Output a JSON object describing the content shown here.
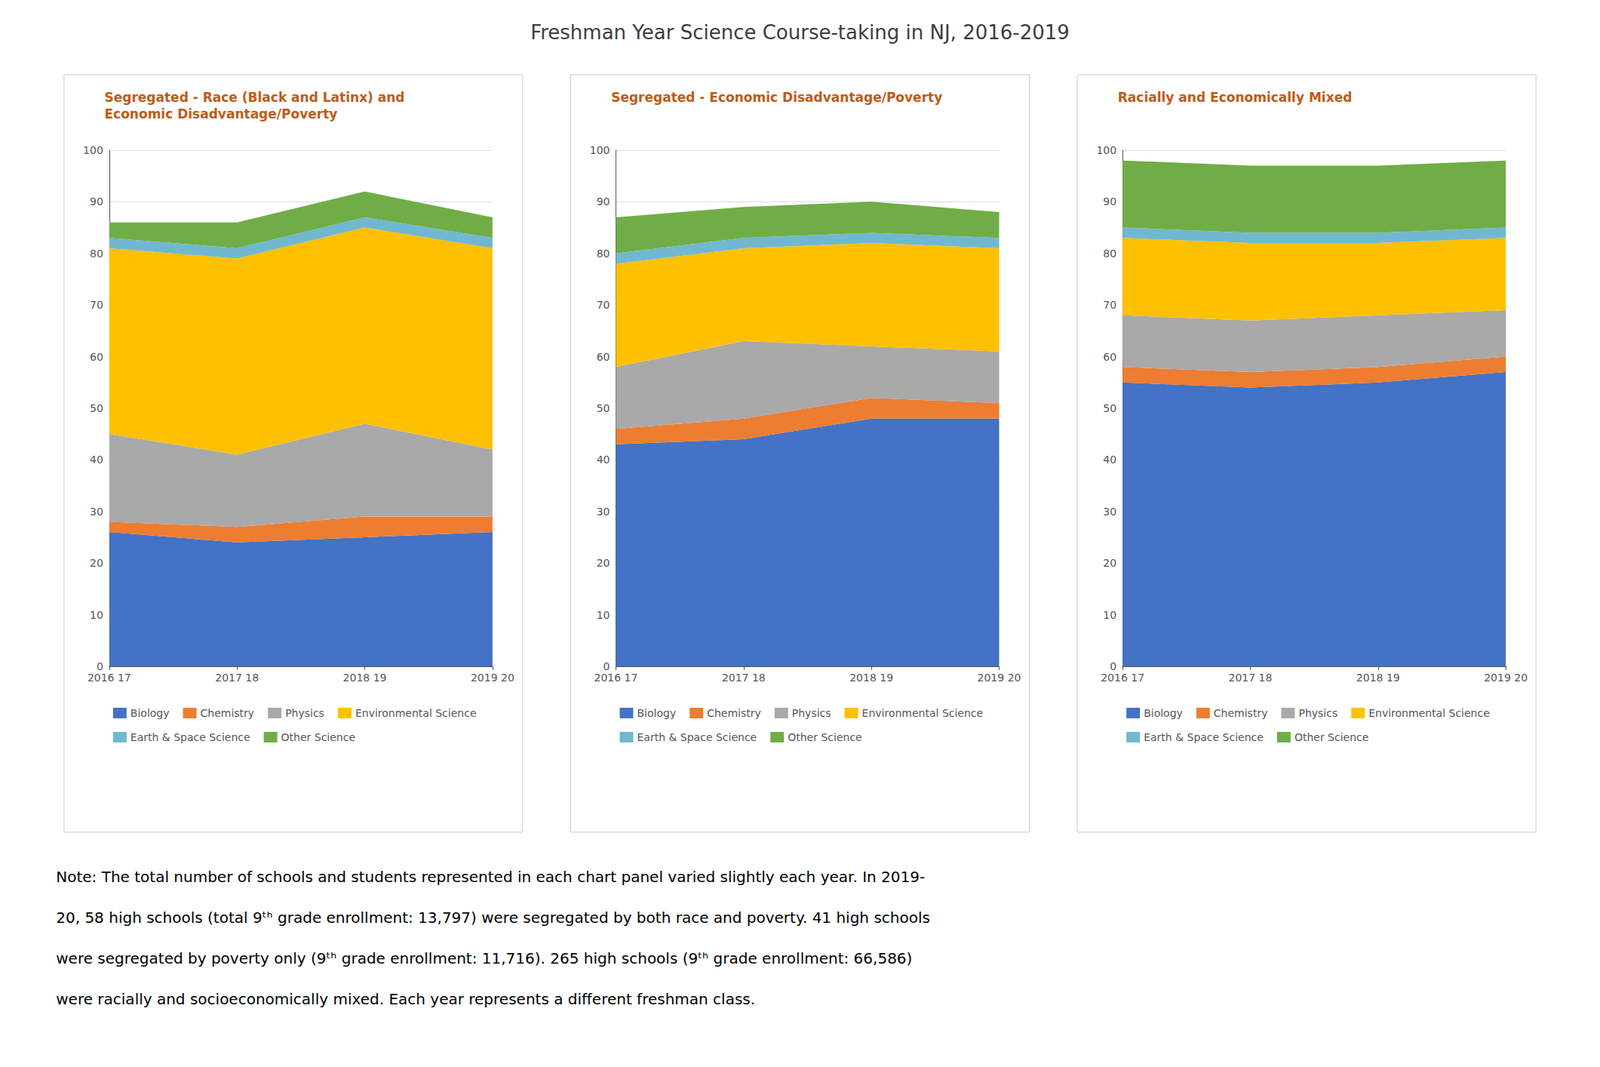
{
  "title": "Freshman Year Science Course-taking in NJ, 2016-2019",
  "annotations": [
    "Note: The total number of schools and students represented in each chart panel varied slightly each year. In 2019-",
    "20, 58 high schools (total 9ᵗʰ grade enrollment: 13,797) were segregated by both race and poverty. 41 high schools",
    "were segregated by poverty only (9ᵗʰ grade enrollment: 11,716). 265 high schools (9ᵗʰ grade enrollment: 66,586)",
    "were racially and socioeconomically mixed. Each year represents a different freshman class."
  ],
  "chart_data": [
    {
      "type": "area",
      "stacked": true,
      "grid": true,
      "legend": "bottom",
      "title": "Segregated - Race (Black and Latinx) and\nEconomic Disadvantage/Poverty",
      "categories": [
        "2016 17",
        "2017 18",
        "2018 19",
        "2019 20"
      ],
      "ylim": [
        0,
        100
      ],
      "yticks": [
        0,
        10,
        20,
        30,
        40,
        50,
        60,
        70,
        80,
        90,
        100
      ],
      "series": [
        {
          "name": "Biology",
          "color": "#4472C4",
          "values": [
            26,
            24,
            25,
            26
          ]
        },
        {
          "name": "Chemistry",
          "color": "#ED7D31",
          "values": [
            2,
            3,
            4,
            3
          ]
        },
        {
          "name": "Physics",
          "color": "#A9A9A9",
          "values": [
            17,
            14,
            18,
            13
          ]
        },
        {
          "name": "Environmental Science",
          "color": "#FFC000",
          "values": [
            36,
            38,
            38,
            39
          ]
        },
        {
          "name": "Earth & Space Science",
          "color": "#70B8D0",
          "values": [
            2,
            2,
            2,
            2
          ]
        },
        {
          "name": "Other Science",
          "color": "#70AD47",
          "values": [
            3,
            5,
            5,
            4
          ]
        }
      ]
    },
    {
      "type": "area",
      "stacked": true,
      "grid": true,
      "legend": "bottom",
      "title": "Segregated - Economic Disadvantage/Poverty",
      "categories": [
        "2016 17",
        "2017 18",
        "2018 19",
        "2019 20"
      ],
      "ylim": [
        0,
        100
      ],
      "yticks": [
        0,
        10,
        20,
        30,
        40,
        50,
        60,
        70,
        80,
        90,
        100
      ],
      "series": [
        {
          "name": "Biology",
          "color": "#4472C4",
          "values": [
            43,
            44,
            48,
            48
          ]
        },
        {
          "name": "Chemistry",
          "color": "#ED7D31",
          "values": [
            3,
            4,
            4,
            3
          ]
        },
        {
          "name": "Physics",
          "color": "#A9A9A9",
          "values": [
            12,
            15,
            10,
            10
          ]
        },
        {
          "name": "Environmental Science",
          "color": "#FFC000",
          "values": [
            20,
            18,
            20,
            20
          ]
        },
        {
          "name": "Earth & Space Science",
          "color": "#70B8D0",
          "values": [
            2,
            2,
            2,
            2
          ]
        },
        {
          "name": "Other Science",
          "color": "#70AD47",
          "values": [
            7,
            6,
            6,
            5
          ]
        }
      ]
    },
    {
      "type": "area",
      "stacked": true,
      "grid": true,
      "legend": "bottom",
      "title": "Racially and Economically Mixed",
      "categories": [
        "2016 17",
        "2017 18",
        "2018 19",
        "2019 20"
      ],
      "ylim": [
        0,
        100
      ],
      "yticks": [
        0,
        10,
        20,
        30,
        40,
        50,
        60,
        70,
        80,
        90,
        100
      ],
      "series": [
        {
          "name": "Biology",
          "color": "#4472C4",
          "values": [
            55,
            54,
            55,
            57
          ]
        },
        {
          "name": "Chemistry",
          "color": "#ED7D31",
          "values": [
            3,
            3,
            3,
            3
          ]
        },
        {
          "name": "Physics",
          "color": "#A9A9A9",
          "values": [
            10,
            10,
            10,
            9
          ]
        },
        {
          "name": "Environmental Science",
          "color": "#FFC000",
          "values": [
            15,
            15,
            14,
            14
          ]
        },
        {
          "name": "Earth & Space Science",
          "color": "#70B8D0",
          "values": [
            2,
            2,
            2,
            2
          ]
        },
        {
          "name": "Other Science",
          "color": "#70AD47",
          "values": [
            13,
            13,
            13,
            13
          ]
        }
      ]
    }
  ]
}
